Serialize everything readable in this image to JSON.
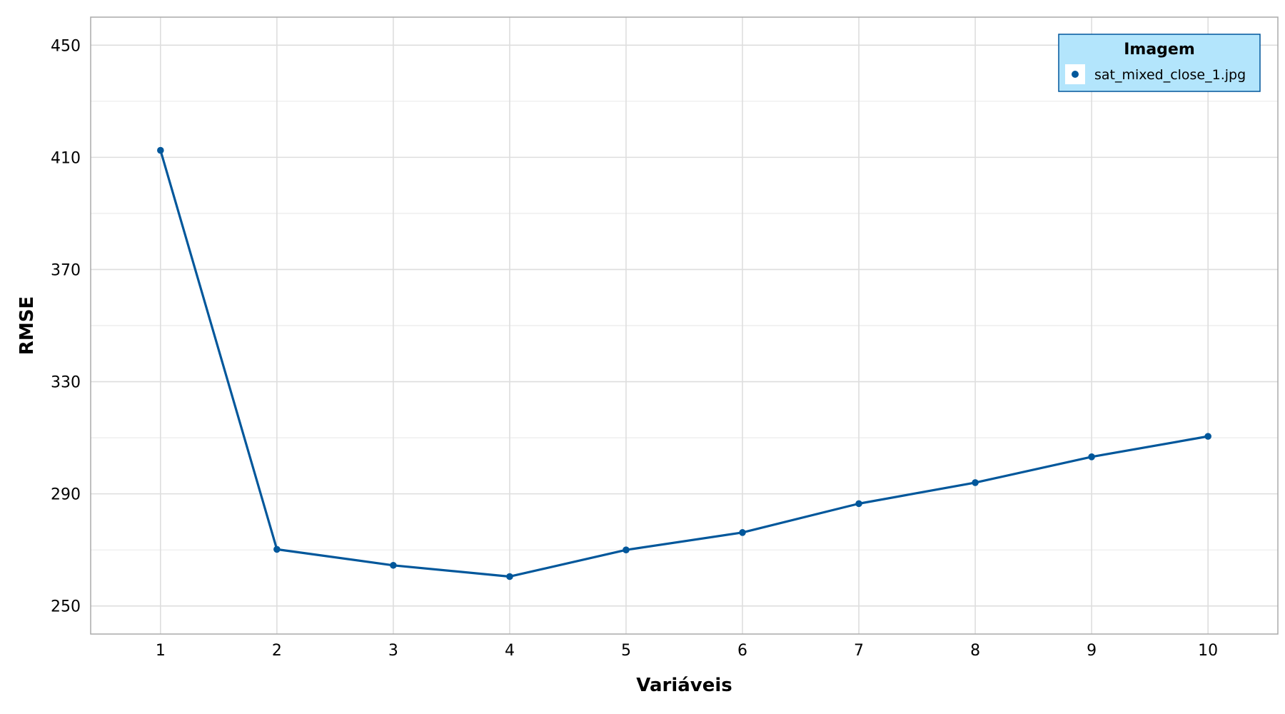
{
  "chart_data": {
    "type": "line",
    "title": "",
    "xlabel": "Variáveis",
    "ylabel": "RMSE",
    "x": [
      1,
      2,
      3,
      4,
      5,
      6,
      7,
      8,
      9,
      10
    ],
    "xlim": [
      0.4,
      10.6
    ],
    "ylim": [
      240,
      460
    ],
    "x_ticks": [
      1,
      2,
      3,
      4,
      5,
      6,
      7,
      8,
      9,
      10
    ],
    "y_ticks": [
      250,
      290,
      330,
      370,
      410,
      450
    ],
    "y_minor_ticks": [
      270,
      310,
      350,
      390,
      430
    ],
    "grid": true,
    "legend": {
      "title": "Imagem",
      "position": "top-right",
      "background_color": "#b3e5fc",
      "border_color": "#01579b"
    },
    "series": [
      {
        "name": "sat_mixed_close_1.jpg",
        "color": "#01579b",
        "values": [
          412.5,
          270.2,
          264.5,
          260.5,
          270.0,
          276.2,
          286.5,
          294.0,
          303.2,
          310.5
        ]
      }
    ]
  }
}
